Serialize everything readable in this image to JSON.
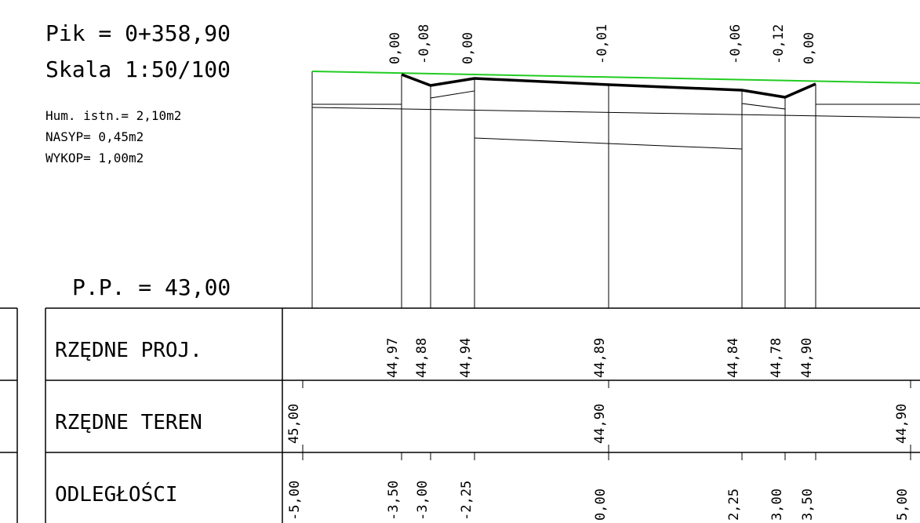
{
  "header": {
    "pik": "Pik  =  0+358,90",
    "skala": "Skala 1:50/100",
    "hum": "Hum. istn.= 2,10m2",
    "nasyp": "NASYP= 0,45m2",
    "wykop": "WYKOP= 1,00m2",
    "pp": "P.P.  =  43,00"
  },
  "colors": {
    "terrain": "#22cc22",
    "design": "#000000",
    "lines": "#000000"
  },
  "table": {
    "rows": [
      {
        "label": "RZĘDNE PROJ."
      },
      {
        "label": "RZĘDNE TEREN"
      },
      {
        "label": "ODLEGŁOŚCI"
      }
    ]
  },
  "chart_data": {
    "type": "cross-section",
    "datum_label": "P.P.  =  43,00",
    "top_labels": [
      {
        "d": -3.5,
        "text": "0,00"
      },
      {
        "d": -3.0,
        "text": "-0,08"
      },
      {
        "d": -2.25,
        "text": "0,00"
      },
      {
        "d": 0.0,
        "text": "-0,01"
      },
      {
        "d": 2.25,
        "text": "-0,06"
      },
      {
        "d": 3.0,
        "text": "-0,12"
      },
      {
        "d": 3.5,
        "text": "0,00"
      }
    ],
    "design_levels": [
      {
        "d": -3.5,
        "text": "44,97"
      },
      {
        "d": -3.0,
        "text": "44,88"
      },
      {
        "d": -2.25,
        "text": "44,94"
      },
      {
        "d": 0.0,
        "text": "44,89"
      },
      {
        "d": 2.25,
        "text": "44,84"
      },
      {
        "d": 3.0,
        "text": "44,78"
      },
      {
        "d": 3.5,
        "text": "44,90"
      }
    ],
    "terrain_levels": [
      {
        "d": -5.0,
        "text": "45,00"
      },
      {
        "d": 0.0,
        "text": "44,90"
      },
      {
        "d": 5.0,
        "text": "44,90"
      }
    ],
    "distances": [
      {
        "d": -5.0,
        "text": "-5,00"
      },
      {
        "d": -3.5,
        "text": "-3,50"
      },
      {
        "d": -3.0,
        "text": "-3,00"
      },
      {
        "d": -2.25,
        "text": "-2,25"
      },
      {
        "d": 0.0,
        "text": "0,00"
      },
      {
        "d": 2.25,
        "text": "2,25"
      },
      {
        "d": 3.0,
        "text": "3,00"
      },
      {
        "d": 3.5,
        "text": "3,50"
      },
      {
        "d": 5.0,
        "text": "5,00"
      }
    ]
  }
}
